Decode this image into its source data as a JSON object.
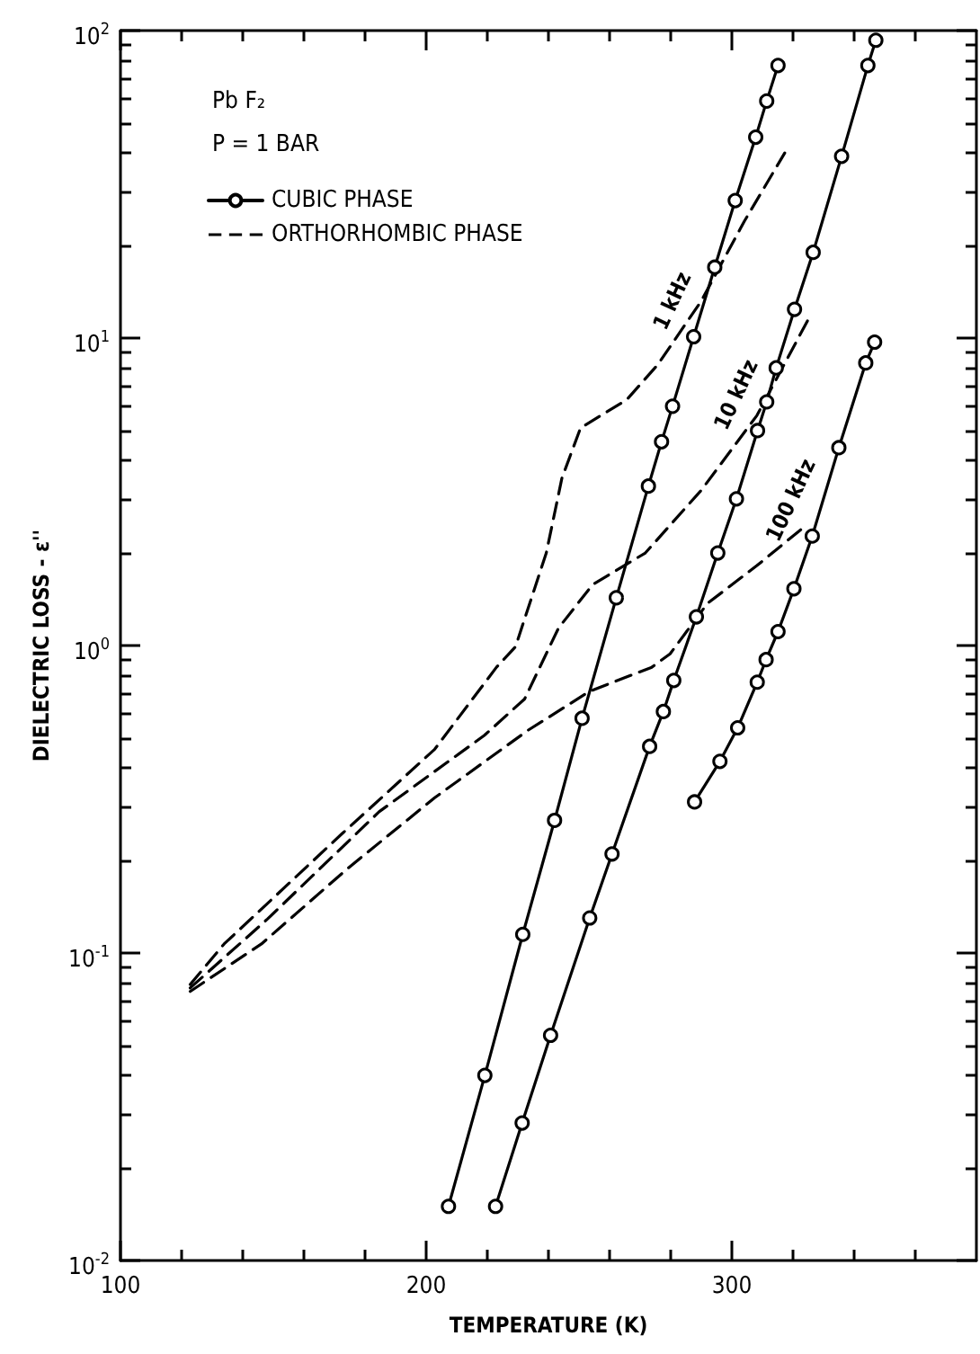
{
  "chart_data": {
    "type": "line",
    "xlabel": "TEMPERATURE (K)",
    "ylabel": "DIELECTRIC LOSS - ε''",
    "annotations": [
      "Pb F₂",
      "P = 1 BAR",
      {
        "text": "1 kHz",
        "x": 287.5,
        "y": 10.1
      },
      {
        "text": "10 kHz",
        "x": 308.4,
        "y": 5.0
      },
      {
        "text": "100 kHz",
        "x": 326.3,
        "y": 2.27
      }
    ],
    "log": "y",
    "legend": "top left",
    "grid": false,
    "xlim": [
      100,
      380
    ],
    "xticks": [
      100,
      {
        "value": 120,
        "label": null
      },
      {
        "value": 140,
        "label": null
      },
      {
        "value": 160,
        "label": null
      },
      {
        "value": 180,
        "label": null
      },
      200,
      {
        "value": 220,
        "label": null
      },
      {
        "value": 240,
        "label": null
      },
      {
        "value": 260,
        "label": null
      },
      {
        "value": 280,
        "label": null
      },
      300,
      {
        "value": 320,
        "label": null
      },
      {
        "value": 340,
        "label": null
      },
      {
        "value": 360,
        "label": null
      }
    ],
    "ylim": [
      0.01,
      100
    ],
    "yticks": [
      {
        "value": 0.01,
        "label": "10$^{-2}$"
      },
      {
        "value": 0.02,
        "label": null
      },
      {
        "value": 0.03,
        "label": null
      },
      {
        "value": 0.04,
        "label": null
      },
      {
        "value": 0.05,
        "label": null
      },
      {
        "value": 0.06,
        "label": null
      },
      {
        "value": 0.07,
        "label": null
      },
      {
        "value": 0.08,
        "label": null
      },
      {
        "value": 0.09,
        "label": null
      },
      {
        "value": 0.1,
        "label": "10$^{-1}$"
      },
      {
        "value": 0.2,
        "label": null
      },
      {
        "value": 0.3,
        "label": null
      },
      {
        "value": 0.4,
        "label": null
      },
      {
        "value": 0.5,
        "label": null
      },
      {
        "value": 0.6,
        "label": null
      },
      {
        "value": 0.7,
        "label": null
      },
      {
        "value": 0.8,
        "label": null
      },
      {
        "value": 0.9,
        "label": null
      },
      {
        "value": 1,
        "label": "10$^{0}$"
      },
      {
        "value": 2,
        "label": null
      },
      {
        "value": 3,
        "label": null
      },
      {
        "value": 4,
        "label": null
      },
      {
        "value": 5,
        "label": null
      },
      {
        "value": 6,
        "label": null
      },
      {
        "value": 7,
        "label": null
      },
      {
        "value": 8,
        "label": null
      },
      {
        "value": 9,
        "label": null
      },
      {
        "value": 10,
        "label": "10$^{1}$"
      },
      {
        "value": 20,
        "label": null
      },
      {
        "value": 30,
        "label": null
      },
      {
        "value": 40,
        "label": null
      },
      {
        "value": 50,
        "label": null
      },
      {
        "value": 60,
        "label": null
      },
      {
        "value": 70,
        "label": null
      },
      {
        "value": 80,
        "label": null
      },
      {
        "value": 90,
        "label": null
      },
      {
        "value": 100,
        "label": "10$^{2}$"
      }
    ],
    "series": [
      {
        "name": "CUBIC PHASE",
        "color": "#000000",
        "marker": "circle",
        "line_style": "solid",
        "x": [
          207.3,
          219.2,
          231.6,
          242,
          251,
          262.2,
          272.7,
          277,
          280.6,
          287.5,
          294.4,
          301.1,
          307.8,
          311.4,
          315.1
        ],
        "values": [
          0.015,
          0.04,
          0.115,
          0.27,
          0.58,
          1.43,
          3.3,
          4.6,
          6.0,
          10.1,
          17,
          28,
          45,
          59,
          77
        ]
      },
      {
        "color": "#000000",
        "marker": "circle",
        "line_style": "solid",
        "x": [
          222.7,
          231.4,
          240.7,
          253.5,
          260.8,
          273.1,
          277.6,
          281,
          288.4,
          295.4,
          301.5,
          308.4,
          311.4,
          314.5,
          320.5,
          326.6,
          335.9,
          344.5,
          347.1
        ],
        "values": [
          0.015,
          0.028,
          0.054,
          0.13,
          0.21,
          0.47,
          0.61,
          0.77,
          1.24,
          2.0,
          3.0,
          5.0,
          6.2,
          8.0,
          12.4,
          19,
          39,
          77,
          93
        ]
      },
      {
        "color": "#000000",
        "marker": "circle",
        "line_style": "solid",
        "x": [
          287.8,
          296.1,
          301.9,
          308.3,
          311.2,
          315.1,
          320.3,
          326.3,
          335,
          343.8,
          346.7
        ],
        "values": [
          0.31,
          0.42,
          0.54,
          0.76,
          0.9,
          1.11,
          1.53,
          2.27,
          4.4,
          8.3,
          9.7
        ]
      },
      {
        "name": "ORTHORHOMBIC PHASE",
        "color": "#000000",
        "marker": "none",
        "line_style": "dashed",
        "x": [
          122.8,
          133.9,
          172.4,
          202.8,
          223,
          229.2,
          239.3,
          244.4,
          250.5,
          265.6,
          275.8,
          290,
          304.1,
          317.3
        ],
        "values": [
          0.079,
          0.107,
          0.244,
          0.46,
          0.85,
          0.99,
          2.0,
          3.5,
          5.1,
          6.3,
          8.2,
          13.2,
          24,
          40
        ]
      },
      {
        "color": "#000000",
        "marker": "none",
        "line_style": "dashed",
        "x": [
          122.8,
          148.1,
          184.6,
          219,
          232.2,
          243.3,
          254.5,
          271.7,
          290,
          308.2,
          325.4
        ],
        "values": [
          0.077,
          0.129,
          0.288,
          0.51,
          0.67,
          1.14,
          1.58,
          2.0,
          3.2,
          5.6,
          11.7
        ]
      },
      {
        "color": "#000000",
        "marker": "none",
        "line_style": "dashed",
        "x": [
          122.8,
          146.1,
          174.5,
          202.8,
          233.3,
          253.5,
          273.8,
          279.8,
          292,
          308.2,
          323.4
        ],
        "values": [
          0.075,
          0.107,
          0.189,
          0.32,
          0.53,
          0.71,
          0.85,
          0.94,
          1.37,
          1.82,
          2.42
        ]
      }
    ]
  }
}
